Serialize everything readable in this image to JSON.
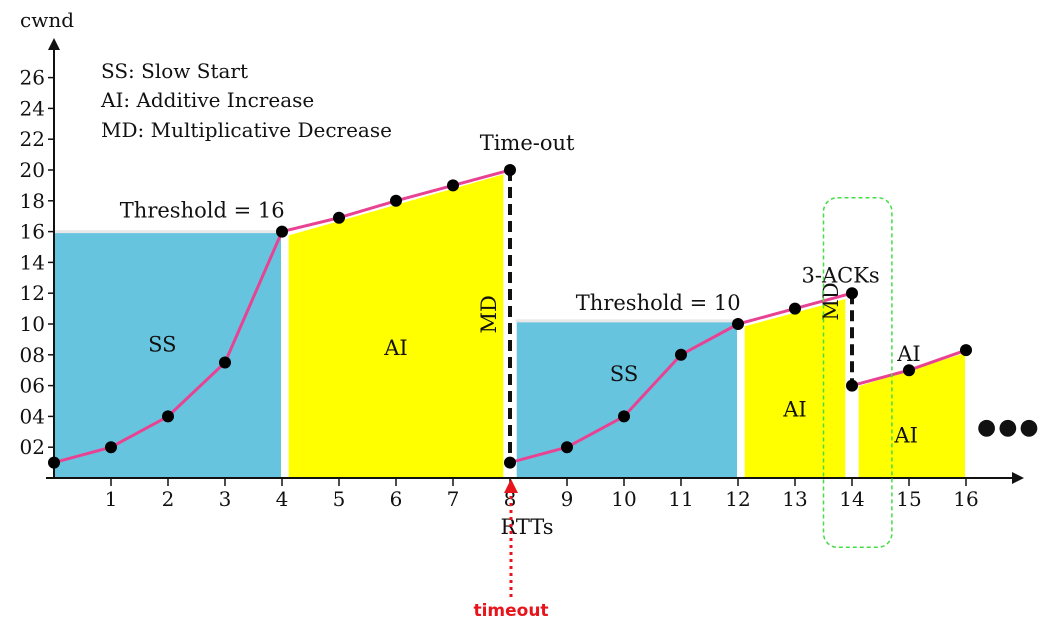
{
  "chart_data": {
    "type": "line",
    "xlabel": "RTTs",
    "ylabel": "cwnd",
    "xlim": [
      0,
      17.5
    ],
    "ylim": [
      0,
      28
    ],
    "x_ticks": [
      1,
      2,
      3,
      4,
      5,
      6,
      7,
      8,
      9,
      10,
      11,
      12,
      13,
      14,
      15,
      16
    ],
    "y_ticks": [
      "02",
      "04",
      "06",
      "08",
      "10",
      "12",
      "14",
      "16",
      "18",
      "20",
      "22",
      "24",
      "26"
    ],
    "series": [
      {
        "points": [
          [
            0,
            1
          ],
          [
            1,
            2
          ],
          [
            2,
            4
          ],
          [
            3,
            7.5
          ],
          [
            4,
            16
          ],
          [
            5,
            16.9
          ],
          [
            6,
            18
          ],
          [
            7,
            19
          ],
          [
            8,
            20
          ],
          [
            8,
            1
          ],
          [
            9,
            2
          ],
          [
            10,
            4
          ],
          [
            11,
            8
          ],
          [
            12,
            10
          ],
          [
            13,
            11
          ],
          [
            14,
            12
          ],
          [
            14,
            6
          ],
          [
            15,
            7
          ],
          [
            16,
            8.3
          ]
        ]
      }
    ],
    "regions": [
      {
        "label": "SS",
        "type": "slow-start",
        "color": "#67c4df",
        "x": [
          0,
          4
        ],
        "top": 16,
        "label_pos": [
          1.9,
          8.2
        ]
      },
      {
        "label": "AI",
        "type": "additive-increase",
        "color": "#ffff00",
        "x": [
          4.1,
          7.9
        ],
        "top_start": 15.8,
        "top_end": 19.8,
        "label_pos": [
          6,
          8
        ]
      },
      {
        "label": "SS",
        "type": "slow-start",
        "color": "#67c4df",
        "x": [
          8.1,
          12
        ],
        "top": 10.2,
        "label_pos": [
          10,
          6.3
        ]
      },
      {
        "label": "AI",
        "type": "additive-increase",
        "color": "#ffff00",
        "x": [
          12.1,
          13.9
        ],
        "top_start": 9.9,
        "top_end": 11.7,
        "label_pos": [
          13,
          4
        ]
      },
      {
        "label": "AI",
        "type": "additive-increase",
        "color": "#ffff00",
        "x": [
          14.1,
          16
        ],
        "top_start": 6,
        "top_end": 8.2,
        "label_pos": [
          14.95,
          2.3
        ]
      }
    ],
    "drops": [
      {
        "label": "MD",
        "x": 8,
        "from": 20,
        "to": 1
      },
      {
        "label": "MD",
        "x": 14,
        "from": 12,
        "to": 6
      }
    ],
    "threshold_lines": [
      {
        "value": 16,
        "x": [
          0,
          4
        ]
      },
      {
        "value": 10.2,
        "x": [
          8.1,
          12
        ]
      }
    ],
    "annotations": [
      {
        "text": "Threshold = 16",
        "x": 2.6,
        "y": 16.9
      },
      {
        "text": "Threshold = 10",
        "x": 10.6,
        "y": 10.9
      },
      {
        "text": "Time-out",
        "x": 8.3,
        "y": 21.3
      },
      {
        "text": "3-ACKs",
        "x": 13.8,
        "y": 12.7
      },
      {
        "text": "AI",
        "x": 15,
        "y": 7.6
      }
    ],
    "legend": {
      "placement": "top-left",
      "entries": [
        "SS: Slow Start",
        "AI: Additive Increase",
        "MD: Multiplicative Decrease"
      ]
    },
    "callouts": {
      "timeout_label": "timeout",
      "continuation": "●●●"
    },
    "highlight_box": {
      "x_range": [
        13.5,
        14.7
      ],
      "y_range": [
        -4.5,
        18.2
      ],
      "color": "#44dd44"
    },
    "colors": {
      "slow_start": "#67c4df",
      "additive_increase": "#ffff00",
      "line": "#e84393",
      "point": "#000000",
      "timeout_arrow": "#e8141c"
    }
  }
}
